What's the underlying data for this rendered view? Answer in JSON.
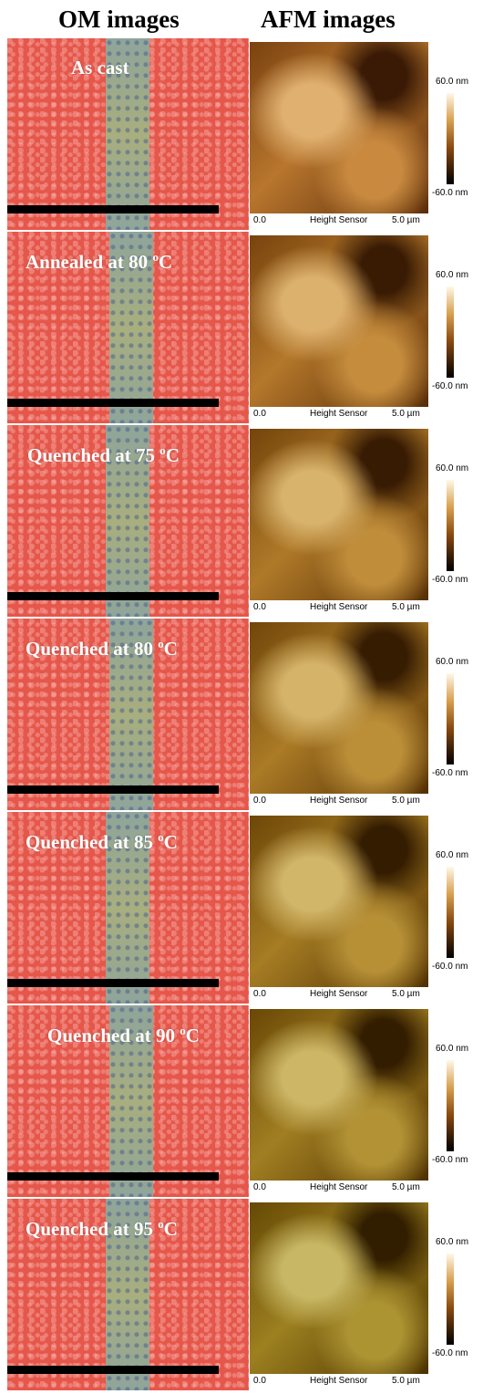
{
  "header": {
    "om_title": "OM images",
    "afm_title": "AFM images"
  },
  "rows": [
    {
      "label_main": "As cast",
      "label_sup": null,
      "label_unit": null,
      "scale_max": "60.0 nm",
      "scale_min": "-60.0 nm",
      "axis_start": "0.0",
      "axis_label": "Height Sensor",
      "axis_end": "5.0 µm"
    },
    {
      "label_main": "Annealed at 80 ",
      "label_sup": "o",
      "label_unit": "C",
      "scale_max": "60.0 nm",
      "scale_min": "-60.0 nm",
      "axis_start": "0.0",
      "axis_label": "Height Sensor",
      "axis_end": "5.0 µm"
    },
    {
      "label_main": "Quenched at 75 ",
      "label_sup": "o",
      "label_unit": "C",
      "scale_max": "60.0 nm",
      "scale_min": "-60.0 nm",
      "axis_start": "0.0",
      "axis_label": "Height Sensor",
      "axis_end": "5.0 µm"
    },
    {
      "label_main": "Quenched at 80 ",
      "label_sup": "o",
      "label_unit": "C",
      "scale_max": "60.0 nm",
      "scale_min": "-60.0 nm",
      "axis_start": "0.0",
      "axis_label": "Height Sensor",
      "axis_end": "5.0 µm"
    },
    {
      "label_main": "Quenched at 85 ",
      "label_sup": "o",
      "label_unit": "C",
      "scale_max": "60.0 nm",
      "scale_min": "-60.0 nm",
      "axis_start": "0.0",
      "axis_label": "Height Sensor",
      "axis_end": "5.0 µm"
    },
    {
      "label_main": "Quenched at 90 ",
      "label_sup": "o",
      "label_unit": "C",
      "scale_max": "60.0 nm",
      "scale_min": "-60.0 nm",
      "axis_start": "0.0",
      "axis_label": "Height Sensor",
      "axis_end": "5.0 µm"
    },
    {
      "label_main": "Quenched at 95 ",
      "label_sup": "o",
      "label_unit": "C",
      "scale_max": "60.0 nm",
      "scale_min": "-60.0 nm",
      "axis_start": "0.0",
      "axis_label": "Height Sensor",
      "axis_end": "5.0 µm"
    }
  ]
}
